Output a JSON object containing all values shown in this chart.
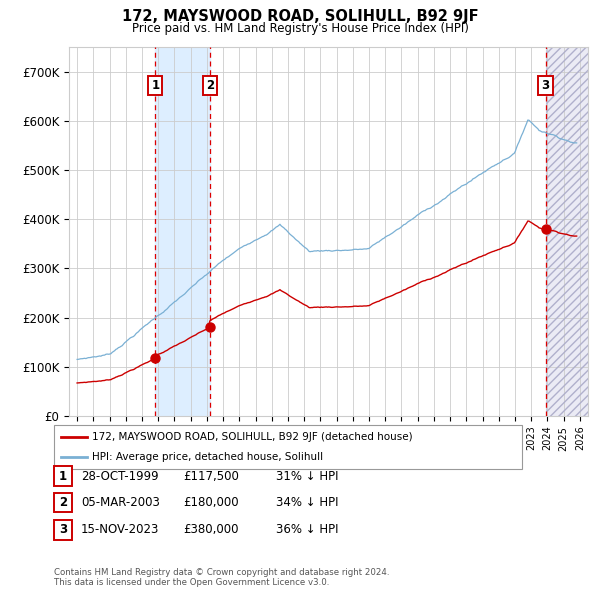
{
  "title": "172, MAYSWOOD ROAD, SOLIHULL, B92 9JF",
  "subtitle": "Price paid vs. HM Land Registry's House Price Index (HPI)",
  "xlim": [
    1994.5,
    2026.5
  ],
  "ylim": [
    0,
    750000
  ],
  "yticks": [
    0,
    100000,
    200000,
    300000,
    400000,
    500000,
    600000,
    700000
  ],
  "ytick_labels": [
    "£0",
    "£100K",
    "£200K",
    "£300K",
    "£400K",
    "£500K",
    "£600K",
    "£700K"
  ],
  "xtick_years": [
    1995,
    1996,
    1997,
    1998,
    1999,
    2000,
    2001,
    2002,
    2003,
    2004,
    2005,
    2006,
    2007,
    2008,
    2009,
    2010,
    2011,
    2012,
    2013,
    2014,
    2015,
    2016,
    2017,
    2018,
    2019,
    2020,
    2021,
    2022,
    2023,
    2024,
    2025,
    2026
  ],
  "sale_dates": [
    1999.83,
    2003.18,
    2023.88
  ],
  "sale_prices": [
    117500,
    180000,
    380000
  ],
  "sale_labels": [
    "1",
    "2",
    "3"
  ],
  "shade_color": "#ddeeff",
  "red_line_color": "#cc0000",
  "blue_line_color": "#7ab0d4",
  "legend_line1": "172, MAYSWOOD ROAD, SOLIHULL, B92 9JF (detached house)",
  "legend_line2": "HPI: Average price, detached house, Solihull",
  "table_rows": [
    [
      "1",
      "28-OCT-1999",
      "£117,500",
      "31% ↓ HPI"
    ],
    [
      "2",
      "05-MAR-2003",
      "£180,000",
      "34% ↓ HPI"
    ],
    [
      "3",
      "15-NOV-2023",
      "£380,000",
      "36% ↓ HPI"
    ]
  ],
  "footnote": "Contains HM Land Registry data © Crown copyright and database right 2024.\nThis data is licensed under the Open Government Licence v3.0.",
  "background_color": "#ffffff",
  "grid_color": "#cccccc"
}
